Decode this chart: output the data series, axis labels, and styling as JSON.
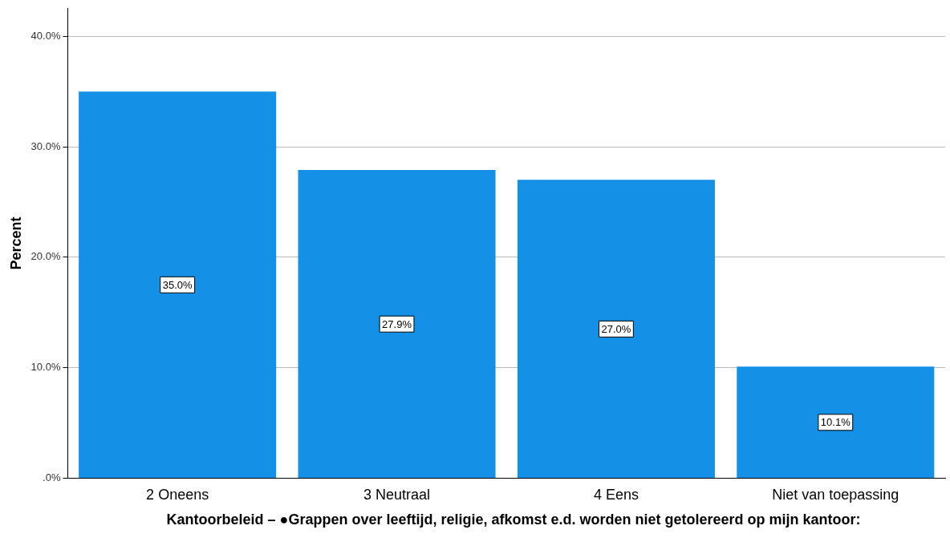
{
  "chart_data": {
    "type": "bar",
    "xlabel": "Kantoorbeleid – ●Grappen over leeftijd, religie, afkomst e.d. worden niet getolereerd op mijn kantoor:",
    "ylabel": "Percent",
    "categories": [
      "2 Oneens",
      "3 Neutraal",
      "4 Eens",
      "Niet van toepassing"
    ],
    "values": [
      35.0,
      27.9,
      27.0,
      10.1
    ],
    "value_labels": [
      "35.0%",
      "27.9%",
      "27.0%",
      "10.1%"
    ],
    "color": "#1490e6",
    "ylim": [
      0,
      42.5
    ],
    "yticks": [
      {
        "value": 0,
        "label": ".0%"
      },
      {
        "value": 10,
        "label": "10.0%"
      },
      {
        "value": 20,
        "label": "20.0%"
      },
      {
        "value": 30,
        "label": "30.0%"
      },
      {
        "value": 40,
        "label": "40.0%"
      }
    ],
    "grid": "y",
    "legend": false
  }
}
